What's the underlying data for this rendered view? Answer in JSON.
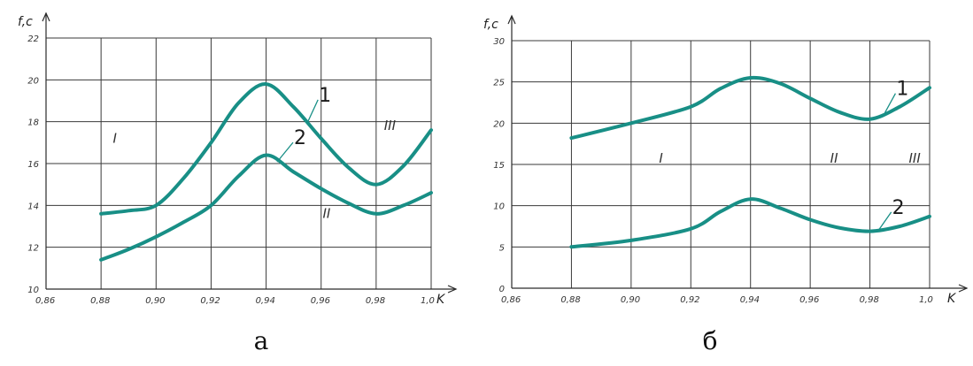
{
  "chart_data": [
    {
      "type": "line",
      "panel_label": "а",
      "ylabel": "f,c",
      "xlabel": "K",
      "xlim": [
        0.86,
        1.0
      ],
      "ylim": [
        10,
        22
      ],
      "x_ticks": [
        "0,86",
        "0,88",
        "0,90",
        "0,92",
        "0,94",
        "0,96",
        "0,98",
        "1,0"
      ],
      "y_ticks": [
        "10",
        "12",
        "14",
        "16",
        "18",
        "20",
        "22"
      ],
      "grid": true,
      "series": [
        {
          "name": "1",
          "x": [
            0.88,
            0.89,
            0.9,
            0.91,
            0.92,
            0.93,
            0.94,
            0.95,
            0.96,
            0.97,
            0.98,
            0.99,
            1.0
          ],
          "values": [
            13.6,
            13.75,
            14.0,
            15.3,
            17.0,
            18.9,
            19.8,
            18.7,
            17.2,
            15.8,
            15.0,
            15.9,
            17.6
          ]
        },
        {
          "name": "2",
          "x": [
            0.88,
            0.89,
            0.9,
            0.91,
            0.92,
            0.93,
            0.94,
            0.95,
            0.96,
            0.97,
            0.98,
            0.99,
            1.0
          ],
          "values": [
            11.4,
            11.9,
            12.5,
            13.2,
            14.0,
            15.4,
            16.4,
            15.6,
            14.8,
            14.1,
            13.6,
            14.0,
            14.6
          ]
        }
      ],
      "region_labels": [
        {
          "text": "I",
          "x": 0.885,
          "y": 17.0
        },
        {
          "text": "II",
          "x": 0.962,
          "y": 13.4
        },
        {
          "text": "III",
          "x": 0.985,
          "y": 17.6
        }
      ]
    },
    {
      "type": "line",
      "panel_label": "б",
      "ylabel": "f,c",
      "xlabel": "K",
      "xlim": [
        0.86,
        1.0
      ],
      "ylim": [
        0,
        30
      ],
      "x_ticks": [
        "0,86",
        "0,88",
        "0,90",
        "0,92",
        "0,94",
        "0,96",
        "0,98",
        "1,0"
      ],
      "y_ticks": [
        "0",
        "5",
        "10",
        "15",
        "20",
        "25",
        "30"
      ],
      "grid": true,
      "series": [
        {
          "name": "1",
          "x": [
            0.88,
            0.9,
            0.92,
            0.93,
            0.94,
            0.95,
            0.96,
            0.97,
            0.98,
            0.99,
            1.0
          ],
          "values": [
            18.2,
            20.0,
            22.0,
            24.2,
            25.5,
            24.8,
            23.0,
            21.3,
            20.5,
            22.0,
            24.3
          ]
        },
        {
          "name": "2",
          "x": [
            0.88,
            0.9,
            0.92,
            0.93,
            0.94,
            0.95,
            0.96,
            0.97,
            0.98,
            0.99,
            1.0
          ],
          "values": [
            5.0,
            5.8,
            7.2,
            9.3,
            10.8,
            9.7,
            8.3,
            7.3,
            6.9,
            7.5,
            8.7
          ]
        }
      ],
      "region_labels": [
        {
          "text": "I",
          "x": 0.91,
          "y": 15.2
        },
        {
          "text": "II",
          "x": 0.968,
          "y": 15.2
        },
        {
          "text": "III",
          "x": 0.995,
          "y": 15.2
        }
      ]
    }
  ]
}
